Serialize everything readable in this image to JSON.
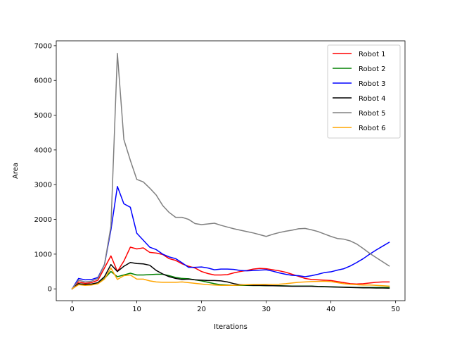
{
  "chart_data": {
    "type": "line",
    "title": "",
    "xlabel": "Iterations",
    "ylabel": "Area",
    "xlim": [
      -2.45,
      51.45
    ],
    "ylim": [
      -340,
      7140
    ],
    "xticks": [
      0,
      10,
      20,
      30,
      40,
      50
    ],
    "yticks": [
      0,
      1000,
      2000,
      3000,
      4000,
      5000,
      6000,
      7000
    ],
    "grid": false,
    "legend": "top-right",
    "x": [
      0,
      1,
      2,
      3,
      4,
      5,
      6,
      7,
      8,
      9,
      10,
      11,
      12,
      13,
      14,
      15,
      16,
      17,
      18,
      19,
      20,
      21,
      22,
      23,
      24,
      25,
      26,
      27,
      28,
      29,
      30,
      31,
      32,
      33,
      34,
      35,
      36,
      37,
      38,
      39,
      40,
      41,
      42,
      43,
      44,
      45,
      46,
      47,
      48,
      49
    ],
    "series": [
      {
        "name": "Robot 1",
        "color": "#ff0000",
        "values": [
          0,
          200,
          160,
          180,
          250,
          600,
          950,
          500,
          800,
          1200,
          1150,
          1180,
          1050,
          1030,
          990,
          870,
          820,
          720,
          650,
          600,
          500,
          440,
          400,
          400,
          410,
          460,
          500,
          530,
          570,
          590,
          580,
          550,
          520,
          480,
          420,
          360,
          300,
          270,
          260,
          250,
          240,
          210,
          180,
          150,
          140,
          150,
          170,
          190,
          200,
          200
        ]
      },
      {
        "name": "Robot 2",
        "color": "#008000",
        "values": [
          0,
          150,
          120,
          130,
          150,
          300,
          500,
          350,
          400,
          450,
          400,
          400,
          410,
          420,
          420,
          380,
          330,
          300,
          290,
          260,
          230,
          190,
          150,
          120,
          110,
          100,
          100,
          100,
          95,
          95,
          90,
          90,
          90,
          85,
          80,
          80,
          80,
          80,
          70,
          65,
          60,
          55,
          50,
          45,
          40,
          40,
          40,
          40,
          40,
          40
        ]
      },
      {
        "name": "Robot 3",
        "color": "#0000ff",
        "values": [
          0,
          300,
          260,
          270,
          330,
          700,
          1700,
          2950,
          2450,
          2350,
          1600,
          1400,
          1200,
          1130,
          1000,
          920,
          870,
          750,
          620,
          620,
          630,
          600,
          550,
          570,
          570,
          560,
          530,
          520,
          530,
          540,
          550,
          510,
          460,
          420,
          390,
          380,
          350,
          380,
          420,
          470,
          490,
          540,
          580,
          660,
          760,
          870,
          1000,
          1120,
          1230,
          1340
        ]
      },
      {
        "name": "Robot 4",
        "color": "#000000",
        "values": [
          0,
          150,
          130,
          140,
          180,
          350,
          700,
          500,
          650,
          760,
          730,
          720,
          680,
          530,
          430,
          350,
          300,
          270,
          280,
          260,
          250,
          240,
          240,
          230,
          200,
          150,
          120,
          110,
          100,
          100,
          95,
          90,
          85,
          80,
          75,
          75,
          75,
          75,
          65,
          60,
          55,
          50,
          45,
          40,
          35,
          30,
          30,
          25,
          25,
          20
        ]
      },
      {
        "name": "Robot 5",
        "color": "#808080",
        "values": [
          0,
          250,
          200,
          220,
          300,
          700,
          1800,
          6780,
          4300,
          3700,
          3150,
          3080,
          2900,
          2700,
          2400,
          2200,
          2060,
          2060,
          2000,
          1880,
          1850,
          1870,
          1890,
          1830,
          1780,
          1730,
          1690,
          1650,
          1610,
          1560,
          1510,
          1570,
          1620,
          1660,
          1690,
          1730,
          1740,
          1700,
          1650,
          1580,
          1510,
          1450,
          1430,
          1380,
          1290,
          1160,
          1020,
          900,
          780,
          660
        ]
      },
      {
        "name": "Robot 6",
        "color": "#ffa500",
        "values": [
          0,
          120,
          100,
          110,
          150,
          280,
          600,
          270,
          380,
          400,
          280,
          280,
          230,
          200,
          190,
          190,
          190,
          200,
          180,
          160,
          140,
          120,
          110,
          100,
          100,
          100,
          110,
          120,
          125,
          125,
          130,
          130,
          135,
          150,
          170,
          190,
          200,
          210,
          215,
          220,
          210,
          180,
          150,
          130,
          120,
          110,
          110,
          100,
          90,
          80
        ]
      }
    ]
  }
}
